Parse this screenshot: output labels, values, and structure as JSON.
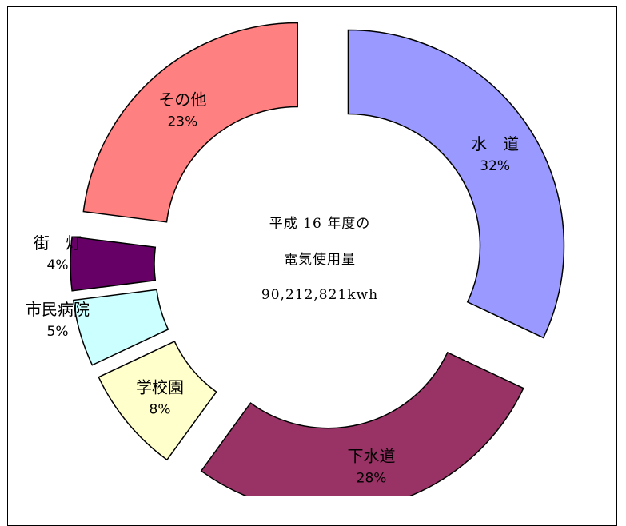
{
  "chart_data": {
    "type": "pie",
    "variant": "exploded-donut",
    "center_text": [
      "平成 16 年度の",
      "電気使用量",
      "90,212,821kwh"
    ],
    "slices": [
      {
        "label": "水　道",
        "percent": "32%",
        "value": 32,
        "color": "#9999ff"
      },
      {
        "label": "下水道",
        "percent": "28%",
        "value": 28,
        "color": "#993366"
      },
      {
        "label": "学校園",
        "percent": "8%",
        "value": 8,
        "color": "#ffffcc"
      },
      {
        "label": "市民病院",
        "percent": "5%",
        "value": 5,
        "color": "#ccffff"
      },
      {
        "label": "街　灯",
        "percent": "4%",
        "value": 4,
        "color": "#660066"
      },
      {
        "label": "その他",
        "percent": "23%",
        "value": 23,
        "color": "#ff8080"
      }
    ]
  }
}
